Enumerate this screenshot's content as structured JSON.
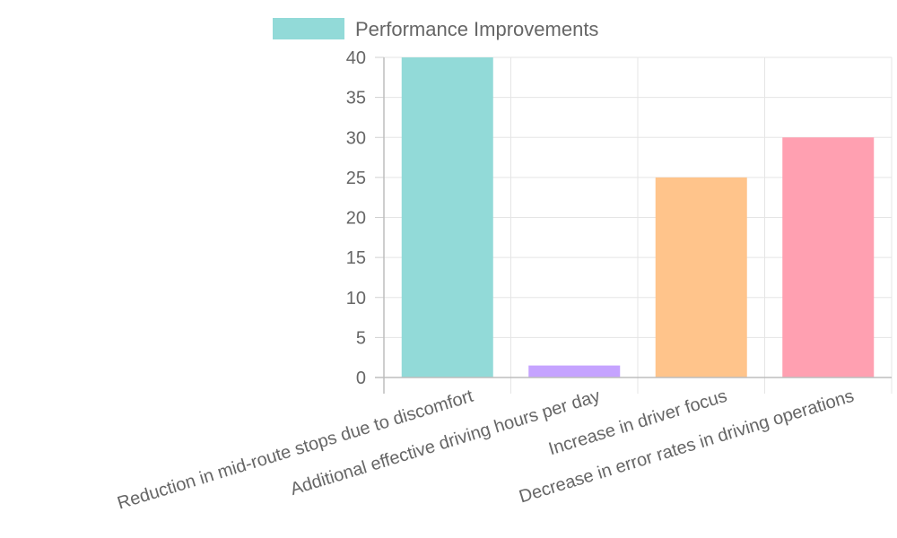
{
  "chart_data": {
    "type": "bar",
    "legend": {
      "label": "Performance Improvements",
      "position": "top",
      "color": "#92dad8"
    },
    "categories": [
      "Reduction in mid-route stops due to discomfort",
      "Additional effective driving hours per day",
      "Increase in driver focus",
      "Decrease in error rates in driving operations"
    ],
    "series": [
      {
        "name": "Performance Improvements",
        "values": [
          40,
          1.5,
          25,
          30
        ]
      }
    ],
    "bar_colors": [
      "#92dad8",
      "#c5a3ff",
      "#ffc48b",
      "#ffa0b1"
    ],
    "ylim": [
      0,
      40
    ],
    "yticks": [
      "0",
      "5",
      "10",
      "15",
      "20",
      "25",
      "30",
      "35",
      "40"
    ],
    "grid": true
  }
}
